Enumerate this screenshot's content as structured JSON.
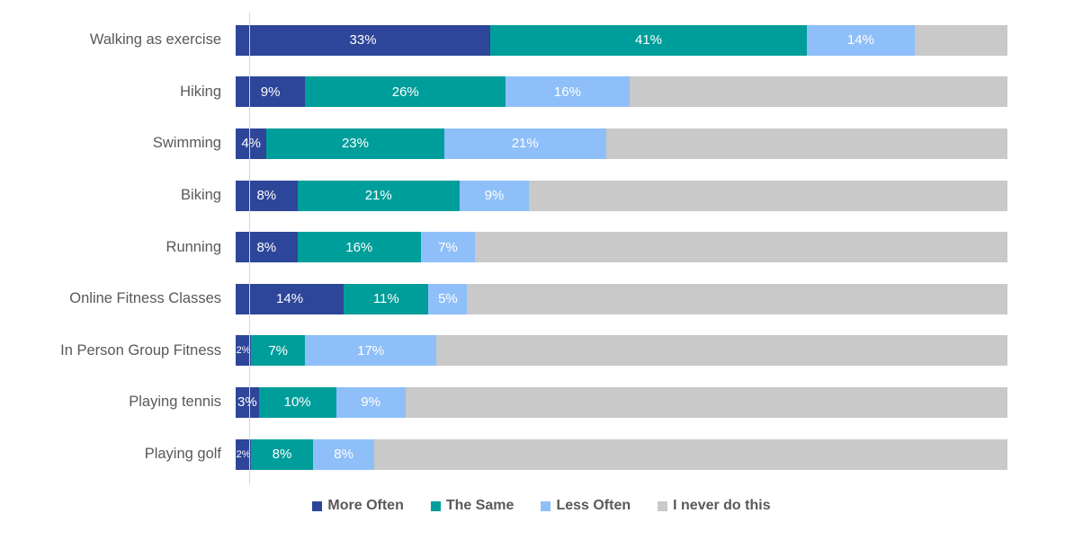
{
  "chart_data": {
    "type": "bar",
    "orientation": "horizontal-stacked",
    "title": "",
    "xlabel": "",
    "ylabel": "",
    "xlim": [
      0,
      100
    ],
    "grid": false,
    "legend_position": "bottom",
    "value_label_format": "{v}%",
    "categories": [
      "Walking as exercise",
      "Hiking",
      "Swimming",
      "Biking",
      "Running",
      "Online Fitness Classes",
      "In Person Group Fitness",
      "Playing tennis",
      "Playing golf"
    ],
    "series": [
      {
        "name": "More Often",
        "color": "#2E4699",
        "labels_visible": true,
        "values": [
          33,
          9,
          4,
          8,
          8,
          14,
          2,
          3,
          2
        ]
      },
      {
        "name": "The Same",
        "color": "#009E9A",
        "labels_visible": true,
        "values": [
          41,
          26,
          23,
          21,
          16,
          11,
          7,
          10,
          8
        ]
      },
      {
        "name": "Less Often",
        "color": "#8FBFF8",
        "labels_visible": true,
        "values": [
          14,
          16,
          21,
          9,
          7,
          5,
          17,
          9,
          8
        ]
      },
      {
        "name": "I never do this",
        "color": "#C9C9C9",
        "labels_visible": false,
        "values": [
          12,
          49,
          52,
          62,
          69,
          70,
          74,
          78,
          82
        ]
      }
    ]
  },
  "styles": {
    "category_label_color": "#595959",
    "legend_text_color": "#595959",
    "segment_label_color": "#FFFFFF",
    "axis_line_color": "#D6D6D6",
    "background": "#FFFFFF"
  }
}
